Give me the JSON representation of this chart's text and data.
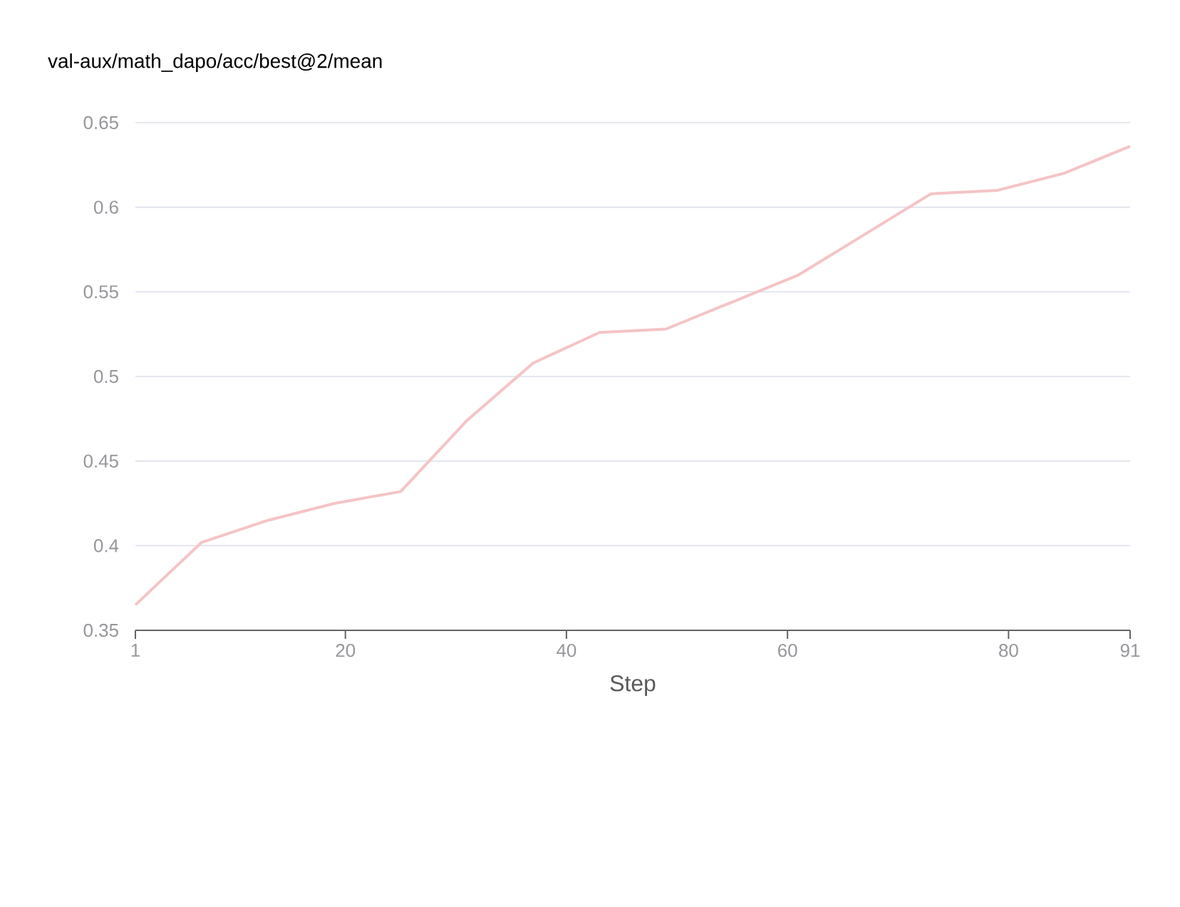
{
  "chart_data": {
    "type": "line",
    "title": "val-aux/math_dapo/acc/best@2/mean",
    "xlabel": "Step",
    "x": [
      1,
      7,
      13,
      19,
      25,
      31,
      37,
      43,
      49,
      55,
      61,
      67,
      73,
      79,
      85,
      91
    ],
    "series": [
      {
        "color": "#f4c4c6",
        "values": [
          0.365,
          0.402,
          0.415,
          0.425,
          0.432,
          0.474,
          0.508,
          0.526,
          0.528,
          0.544,
          0.56,
          0.584,
          0.608,
          0.61,
          0.62,
          0.636
        ]
      }
    ],
    "xlim": [
      1,
      91
    ],
    "xticks": [
      1,
      20,
      40,
      60,
      80,
      91
    ],
    "ylim": [
      0.35,
      0.65
    ],
    "yticks": [
      0.35,
      0.4,
      0.45,
      0.5,
      0.55,
      0.6,
      0.65
    ],
    "grid": "y",
    "legend": false,
    "marker": "none",
    "line_style": "solid"
  }
}
